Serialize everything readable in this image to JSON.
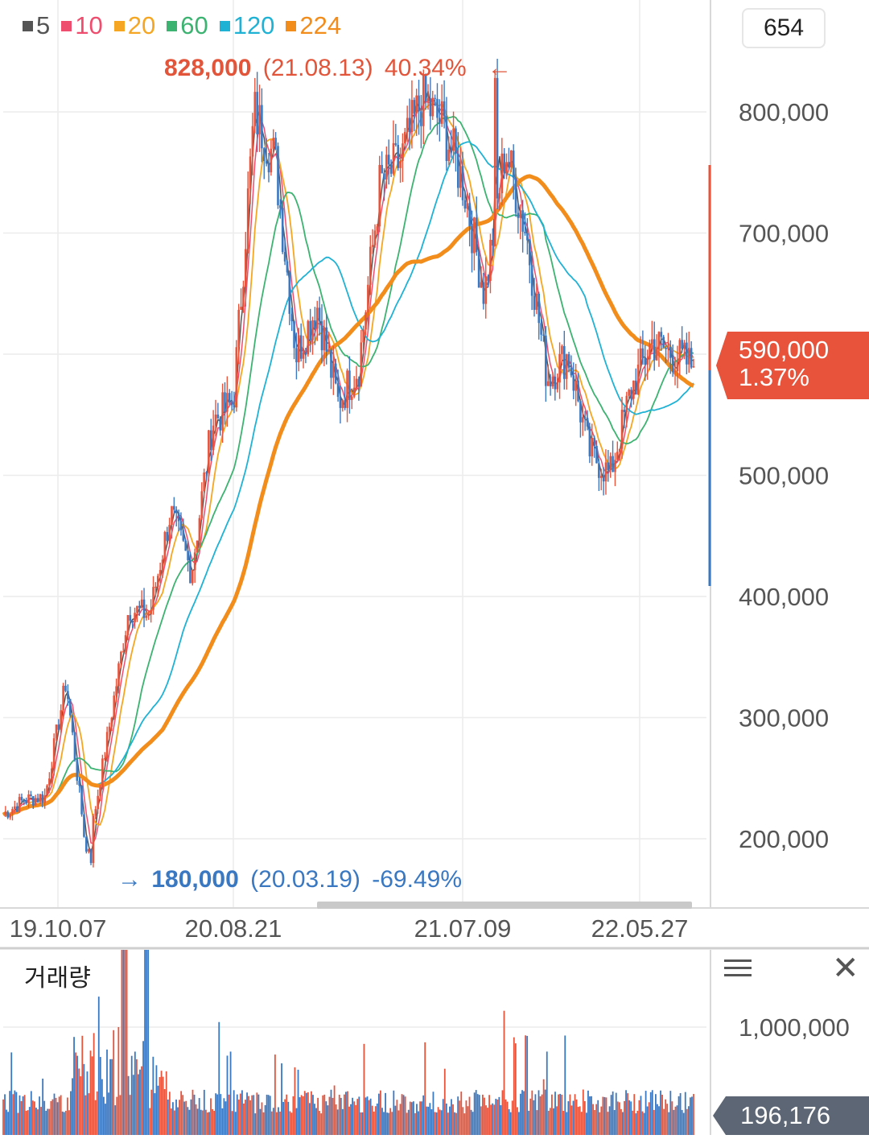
{
  "legend": [
    {
      "label": "5",
      "color": "#555555"
    },
    {
      "label": "10",
      "color": "#ee4d6e"
    },
    {
      "label": "20",
      "color": "#f5a623"
    },
    {
      "label": "60",
      "color": "#3cb371"
    },
    {
      "label": "120",
      "color": "#1fb2d4"
    },
    {
      "label": "224",
      "color": "#f28c1b"
    }
  ],
  "count_box": "654",
  "high_marker": {
    "value": "828,000",
    "date": "(21.08.13)",
    "pct": "40.34%",
    "arrow": "←",
    "color": "#e2553a"
  },
  "low_marker": {
    "value": "180,000",
    "date": "(20.03.19)",
    "pct": "-69.49%",
    "arrow": "→",
    "color": "#3a78c2"
  },
  "last_price": {
    "value": "590,000",
    "pct": "1.37%",
    "color": "#e8533b"
  },
  "volume_panel": {
    "title": "거래량",
    "last_value": "196,176",
    "tag_color": "#5d6674"
  },
  "chart_data": [
    {
      "type": "line",
      "subtype": "candlestick-with-moving-averages",
      "y_ticks": [
        200000,
        300000,
        400000,
        500000,
        600000,
        700000,
        800000
      ],
      "y_tick_labels": [
        "200,000",
        "300,000",
        "400,000",
        "500,000",
        "",
        "700,000",
        "800,000"
      ],
      "x_tick_labels": [
        "19.10.07",
        "20.08.21",
        "21.07.09",
        "22.05.27"
      ],
      "ylim": [
        150000,
        900000
      ],
      "grid": true,
      "legend_position": "top-left",
      "price_series": {
        "x": [
          "19.10",
          "19.12",
          "20.01",
          "20.02",
          "20.03",
          "20.04",
          "20.05",
          "20.06",
          "20.07",
          "20.08",
          "20.09",
          "20.10",
          "20.11",
          "20.12",
          "21.01",
          "21.02",
          "21.03",
          "21.04",
          "21.05",
          "21.06",
          "21.07",
          "21.08",
          "21.09",
          "21.10",
          "21.11",
          "21.12",
          "22.01",
          "22.02",
          "22.03",
          "22.04",
          "22.05",
          "22.06",
          "22.07",
          "22.08"
        ],
        "close": [
          220000,
          232000,
          235000,
          330000,
          185000,
          285000,
          390000,
          385000,
          470000,
          420000,
          545000,
          560000,
          800000,
          760000,
          600000,
          640000,
          560000,
          590000,
          740000,
          760000,
          810000,
          790000,
          740000,
          650000,
          770000,
          700000,
          580000,
          600000,
          520000,
          500000,
          570000,
          610000,
          600000,
          590000
        ]
      },
      "series": [
        {
          "name": "120",
          "values": [
            225000,
            228000,
            232000,
            255000,
            262000,
            268000,
            282000,
            300000,
            330000,
            370000,
            430000,
            500000,
            570000,
            620000,
            660000,
            675000,
            690000,
            695000,
            705000,
            725000,
            735000,
            740000,
            730000,
            695000,
            670000,
            655000,
            640000,
            620000,
            600000,
            590000,
            595000,
            600000
          ]
        },
        {
          "name": "224",
          "values": [
            218000,
            223000,
            228000,
            240000,
            250000,
            258000,
            270000,
            300000,
            350000,
            410000,
            480000,
            560000,
            600000,
            640000,
            680000,
            705000,
            710000,
            700000,
            690000,
            680000,
            672000,
            665000
          ]
        }
      ],
      "high": {
        "value": 828000,
        "date": "21.08.13",
        "pct": 40.34
      },
      "low": {
        "value": 180000,
        "date": "20.03.19",
        "pct": -69.49
      },
      "last": {
        "value": 590000,
        "pct": 1.37
      }
    },
    {
      "type": "bar",
      "title": "거래량",
      "y_ticks": [
        1000000,
        2000000
      ],
      "y_tick_labels": [
        "1,000,000",
        "2,000,000"
      ],
      "ylim": [
        0,
        2400000
      ],
      "last": 196176
    }
  ]
}
